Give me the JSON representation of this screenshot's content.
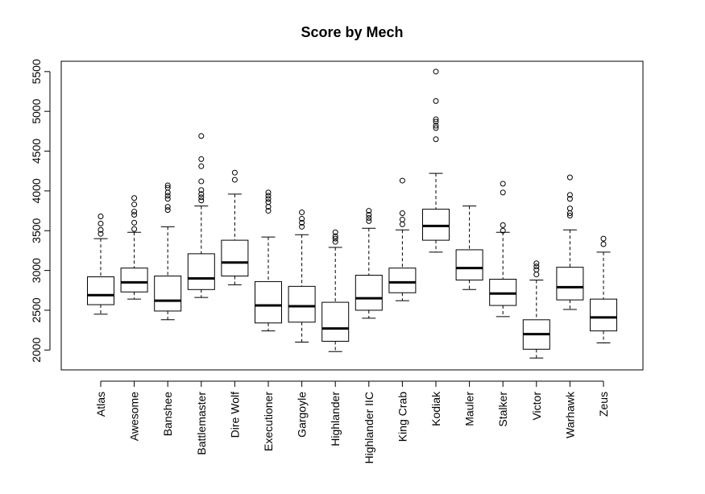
{
  "chart_data": {
    "type": "boxplot",
    "title": "Score by Mech",
    "xlabel": "",
    "ylabel": "",
    "ylim": [
      1750,
      5630
    ],
    "yticks": [
      2000,
      2500,
      3000,
      3500,
      4000,
      4500,
      5000,
      5500
    ],
    "grid": false,
    "categories": [
      "Atlas",
      "Awesome",
      "Banshee",
      "Battlemaster",
      "Dire Wolf",
      "Executioner",
      "Gargoyle",
      "Highlander",
      "Highlander IIC",
      "King Crab",
      "Kodiak",
      "Mauler",
      "Stalker",
      "Victor",
      "Warhawk",
      "Zeus"
    ],
    "boxes": [
      {
        "min": 2450,
        "q1": 2570,
        "median": 2690,
        "q3": 2920,
        "max": 3400,
        "outliers": [
          3460,
          3510,
          3590,
          3680
        ]
      },
      {
        "min": 2640,
        "q1": 2730,
        "median": 2850,
        "q3": 3030,
        "max": 3480,
        "outliers": [
          3520,
          3600,
          3700,
          3740,
          3830,
          3910
        ]
      },
      {
        "min": 2380,
        "q1": 2490,
        "median": 2620,
        "q3": 2930,
        "max": 3550,
        "outliers": [
          3760,
          3800,
          3900,
          3940,
          3980,
          4040,
          4070
        ]
      },
      {
        "min": 2660,
        "q1": 2760,
        "median": 2900,
        "q3": 3210,
        "max": 3810,
        "outliers": [
          3880,
          3920,
          3960,
          4010,
          4120,
          4310,
          4400,
          4690
        ]
      },
      {
        "min": 2820,
        "q1": 2930,
        "median": 3100,
        "q3": 3380,
        "max": 3960,
        "outliers": [
          4140,
          4230
        ]
      },
      {
        "min": 2240,
        "q1": 2340,
        "median": 2560,
        "q3": 2860,
        "max": 3420,
        "outliers": [
          3750,
          3800,
          3860,
          3900,
          3940,
          3980
        ]
      },
      {
        "min": 2100,
        "q1": 2350,
        "median": 2550,
        "q3": 2800,
        "max": 3450,
        "outliers": [
          3550,
          3600,
          3650,
          3730
        ]
      },
      {
        "min": 1980,
        "q1": 2110,
        "median": 2270,
        "q3": 2600,
        "max": 3290,
        "outliers": [
          3360,
          3400,
          3430,
          3480
        ]
      },
      {
        "min": 2400,
        "q1": 2500,
        "median": 2650,
        "q3": 2940,
        "max": 3530,
        "outliers": [
          3620,
          3660,
          3700,
          3750
        ]
      },
      {
        "min": 2620,
        "q1": 2720,
        "median": 2850,
        "q3": 3030,
        "max": 3510,
        "outliers": [
          3580,
          3640,
          3720,
          4130
        ]
      },
      {
        "min": 3230,
        "q1": 3380,
        "median": 3560,
        "q3": 3770,
        "max": 4220,
        "outliers": [
          4650,
          4790,
          4820,
          4870,
          4900,
          5130,
          5500
        ]
      },
      {
        "min": 2760,
        "q1": 2880,
        "median": 3030,
        "q3": 3260,
        "max": 3810,
        "outliers": []
      },
      {
        "min": 2420,
        "q1": 2560,
        "median": 2710,
        "q3": 2890,
        "max": 3480,
        "outliers": [
          3500,
          3570,
          3980,
          4090
        ]
      },
      {
        "min": 1900,
        "q1": 2010,
        "median": 2200,
        "q3": 2380,
        "max": 2880,
        "outliers": [
          2950,
          3010,
          3050,
          3090
        ]
      },
      {
        "min": 2510,
        "q1": 2630,
        "median": 2790,
        "q3": 3040,
        "max": 3510,
        "outliers": [
          3690,
          3720,
          3780,
          3900,
          3950,
          4170
        ]
      },
      {
        "min": 2090,
        "q1": 2240,
        "median": 2410,
        "q3": 2640,
        "max": 3230,
        "outliers": [
          3330,
          3400
        ]
      }
    ]
  }
}
